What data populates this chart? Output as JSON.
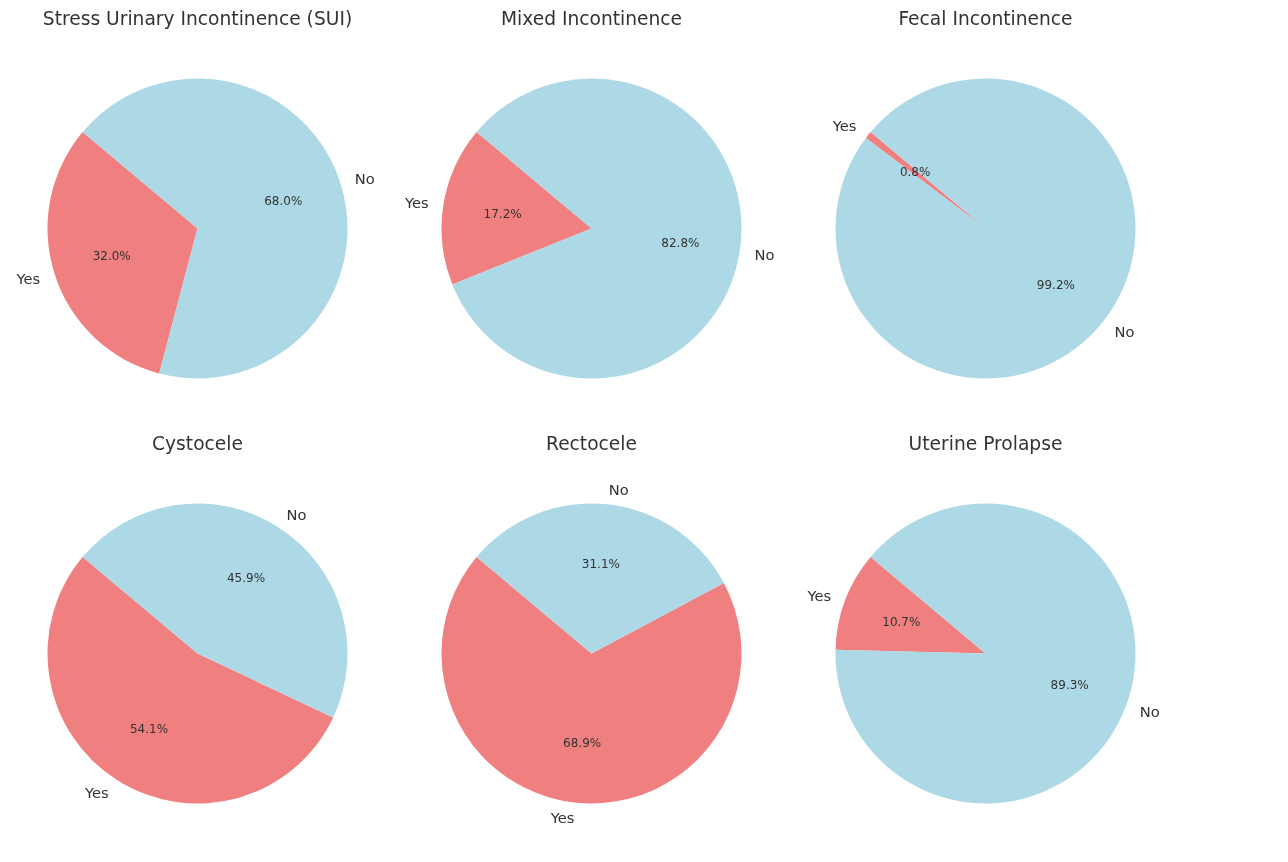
{
  "chart_data": [
    {
      "type": "pie",
      "title": "Stress Urinary Incontinence (SUI)",
      "categories": [
        "Yes",
        "No"
      ],
      "values": [
        32.0,
        68.0
      ],
      "colors": [
        "#f08080",
        "#add8e6"
      ],
      "value_labels": [
        "32.0%",
        "68.0%"
      ],
      "legend": false
    },
    {
      "type": "pie",
      "title": "Mixed Incontinence",
      "categories": [
        "Yes",
        "No"
      ],
      "values": [
        17.2,
        82.8
      ],
      "colors": [
        "#f08080",
        "#add8e6"
      ],
      "value_labels": [
        "17.2%",
        "82.8%"
      ],
      "legend": false
    },
    {
      "type": "pie",
      "title": "Fecal Incontinence",
      "categories": [
        "Yes",
        "No"
      ],
      "values": [
        0.8,
        99.2
      ],
      "colors": [
        "#f08080",
        "#add8e6"
      ],
      "value_labels": [
        "0.8%",
        "99.2%"
      ],
      "legend": false
    },
    {
      "type": "pie",
      "title": "Cystocele",
      "categories": [
        "Yes",
        "No"
      ],
      "values": [
        54.1,
        45.9
      ],
      "colors": [
        "#f08080",
        "#add8e6"
      ],
      "value_labels": [
        "54.1%",
        "45.9%"
      ],
      "legend": false
    },
    {
      "type": "pie",
      "title": "Rectocele",
      "categories": [
        "Yes",
        "No"
      ],
      "values": [
        68.9,
        31.1
      ],
      "colors": [
        "#f08080",
        "#add8e6"
      ],
      "value_labels": [
        "68.9%",
        "31.1%"
      ],
      "legend": false
    },
    {
      "type": "pie",
      "title": "Uterine Prolapse",
      "categories": [
        "Yes",
        "No"
      ],
      "values": [
        10.7,
        89.3
      ],
      "colors": [
        "#f08080",
        "#add8e6"
      ],
      "value_labels": [
        "10.7%",
        "89.3%"
      ],
      "legend": false
    }
  ]
}
